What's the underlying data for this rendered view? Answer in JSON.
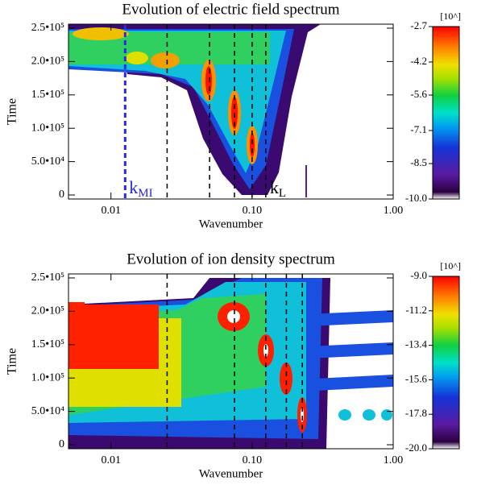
{
  "chart_data": [
    {
      "type": "heatmap",
      "title": "Evolution of electric field spectrum",
      "x_label": "Wavenumber",
      "y_label": "Time",
      "x_log": true,
      "xlim": [
        0.005,
        1.0
      ],
      "xticks": [
        0.01,
        {
          "value": 0.1,
          "label": "0.10"
        },
        {
          "value": 1.0,
          "label": "1.00"
        }
      ],
      "ylim": [
        -6000,
        256000
      ],
      "yticks": [
        0,
        {
          "value": 50000,
          "label": "5.0•10⁴"
        },
        {
          "value": 100000,
          "label": "1.0•10⁵"
        },
        {
          "value": 150000,
          "label": "1.5•10⁵"
        },
        {
          "value": 200000,
          "label": "2.0•10⁵"
        },
        {
          "value": 250000,
          "label": "2.5•10⁵"
        }
      ],
      "colorbar_label": "[10^]",
      "clim": [
        -10.0,
        -2.7
      ],
      "cticks": [
        -2.7,
        -4.2,
        -5.6,
        -7.1,
        -8.5,
        {
          "value": -10.0,
          "label": "-10.0"
        }
      ],
      "vlines": [
        {
          "x": 0.0126,
          "color": "#2a2ae0",
          "label": "k",
          "sub": "MI"
        },
        {
          "x": 0.025,
          "color": "#000000"
        },
        {
          "x": 0.05,
          "color": "#000000"
        },
        {
          "x": 0.075,
          "color": "#000000"
        },
        {
          "x": 0.1,
          "color": "#000000"
        },
        {
          "x": 0.125,
          "color": "#000000",
          "label": "k",
          "sub": "L"
        }
      ]
    },
    {
      "type": "heatmap",
      "title": "Evolution of ion density spectrum",
      "x_label": "Wavenumber",
      "y_label": "Time",
      "x_log": true,
      "xlim": [
        0.005,
        1.0
      ],
      "xticks": [
        0.01,
        {
          "value": 0.1,
          "label": "0.10"
        },
        {
          "value": 1.0,
          "label": "1.00"
        }
      ],
      "ylim": [
        -6000,
        256000
      ],
      "yticks": [
        0,
        {
          "value": 50000,
          "label": "5.0•10⁴"
        },
        {
          "value": 100000,
          "label": "1.0•10⁵"
        },
        {
          "value": 150000,
          "label": "1.5•10⁵"
        },
        {
          "value": 200000,
          "label": "2.0•10⁵"
        },
        {
          "value": 250000,
          "label": "2.5•10⁵"
        }
      ],
      "colorbar_label": "[10^]",
      "clim": [
        -20.0,
        -9.0
      ],
      "cticks": [
        {
          "value": -9.0,
          "label": "-9.0"
        },
        -11.2,
        -13.4,
        -15.6,
        -17.8,
        {
          "value": -20.0,
          "label": "-20.0"
        }
      ],
      "vlines": [
        {
          "x": 0.025,
          "color": "#000000"
        },
        {
          "x": 0.075,
          "color": "#000000"
        },
        {
          "x": 0.125,
          "color": "#000000"
        },
        {
          "x": 0.175,
          "color": "#000000"
        },
        {
          "x": 0.227,
          "color": "#000000"
        }
      ]
    }
  ]
}
